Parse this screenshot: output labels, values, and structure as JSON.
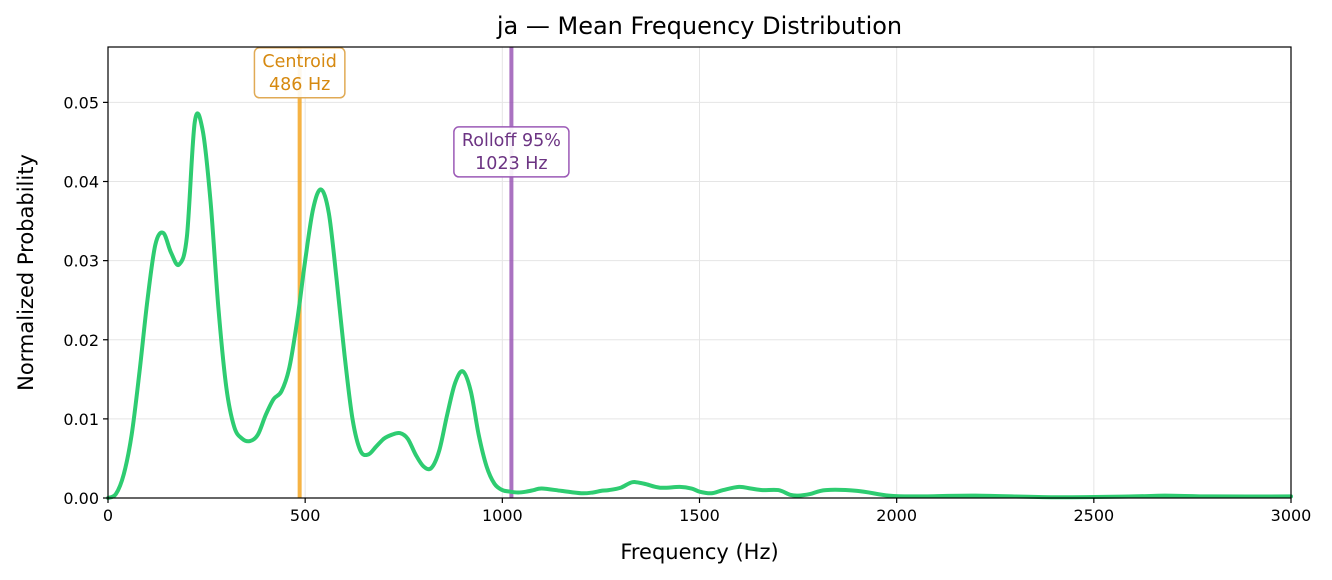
{
  "chart_data": {
    "type": "line",
    "title": "ja  —  Mean Frequency Distribution",
    "xlabel": "Frequency (Hz)",
    "ylabel": "Normalized Probability",
    "xlim": [
      0,
      3000
    ],
    "ylim": [
      0,
      0.057
    ],
    "xticks": [
      0,
      500,
      1000,
      1500,
      2000,
      2500,
      3000
    ],
    "xtick_labels": [
      "0",
      "500",
      "1000",
      "1500",
      "2000",
      "2500",
      "3000"
    ],
    "yticks": [
      0,
      0.01,
      0.02,
      0.03,
      0.04,
      0.05
    ],
    "ytick_labels": [
      "0.00",
      "0.01",
      "0.02",
      "0.03",
      "0.04",
      "0.05"
    ],
    "grid": true,
    "series": [
      {
        "color": "#2ecc71",
        "x": [
          0,
          20,
          40,
          60,
          80,
          100,
          120,
          140,
          160,
          180,
          200,
          220,
          240,
          260,
          280,
          300,
          320,
          340,
          360,
          380,
          400,
          420,
          440,
          460,
          480,
          500,
          520,
          540,
          560,
          580,
          600,
          620,
          640,
          660,
          680,
          700,
          720,
          740,
          760,
          780,
          800,
          820,
          840,
          860,
          880,
          900,
          920,
          940,
          960,
          980,
          1000,
          1020,
          1040,
          1060,
          1080,
          1100,
          1150,
          1200,
          1230,
          1250,
          1270,
          1300,
          1330,
          1360,
          1400,
          1450,
          1480,
          1500,
          1530,
          1560,
          1600,
          1630,
          1660,
          1700,
          1730,
          1750,
          1780,
          1820,
          1900,
          1980,
          2050,
          2200,
          2400,
          2600,
          2680,
          2800,
          3000
        ],
        "y": [
          0.0,
          0.0005,
          0.003,
          0.008,
          0.016,
          0.025,
          0.032,
          0.0335,
          0.031,
          0.0295,
          0.033,
          0.0475,
          0.0465,
          0.0375,
          0.024,
          0.014,
          0.009,
          0.0075,
          0.0072,
          0.008,
          0.0105,
          0.0125,
          0.0135,
          0.0165,
          0.0225,
          0.03,
          0.0365,
          0.039,
          0.036,
          0.0275,
          0.018,
          0.01,
          0.006,
          0.0055,
          0.0065,
          0.0075,
          0.008,
          0.0082,
          0.0075,
          0.0055,
          0.004,
          0.0038,
          0.006,
          0.0105,
          0.0145,
          0.016,
          0.0135,
          0.008,
          0.004,
          0.0018,
          0.001,
          0.0008,
          0.0007,
          0.0008,
          0.001,
          0.0012,
          0.0009,
          0.0006,
          0.0007,
          0.0009,
          0.001,
          0.0013,
          0.002,
          0.0018,
          0.0013,
          0.0014,
          0.0012,
          0.0008,
          0.0006,
          0.001,
          0.0014,
          0.0012,
          0.001,
          0.001,
          0.0004,
          0.0003,
          0.0005,
          0.001,
          0.0009,
          0.0003,
          0.0002,
          0.0003,
          0.0001,
          0.0002,
          0.0003,
          0.0002,
          0.0002
        ]
      }
    ],
    "vlines": [
      {
        "x": 486,
        "color": "#f5a623",
        "label_line1": "Centroid",
        "label_line2": "486 Hz",
        "text_color": "#d68910",
        "box_edge": "#e0aa55",
        "label_y": 0.0545
      },
      {
        "x": 1023,
        "color": "#9b59b6",
        "label_line1": "Rolloff 95%",
        "label_line2": "1023 Hz",
        "text_color": "#6c3483",
        "box_edge": "#9b59b6",
        "label_y": 0.0445
      }
    ]
  }
}
